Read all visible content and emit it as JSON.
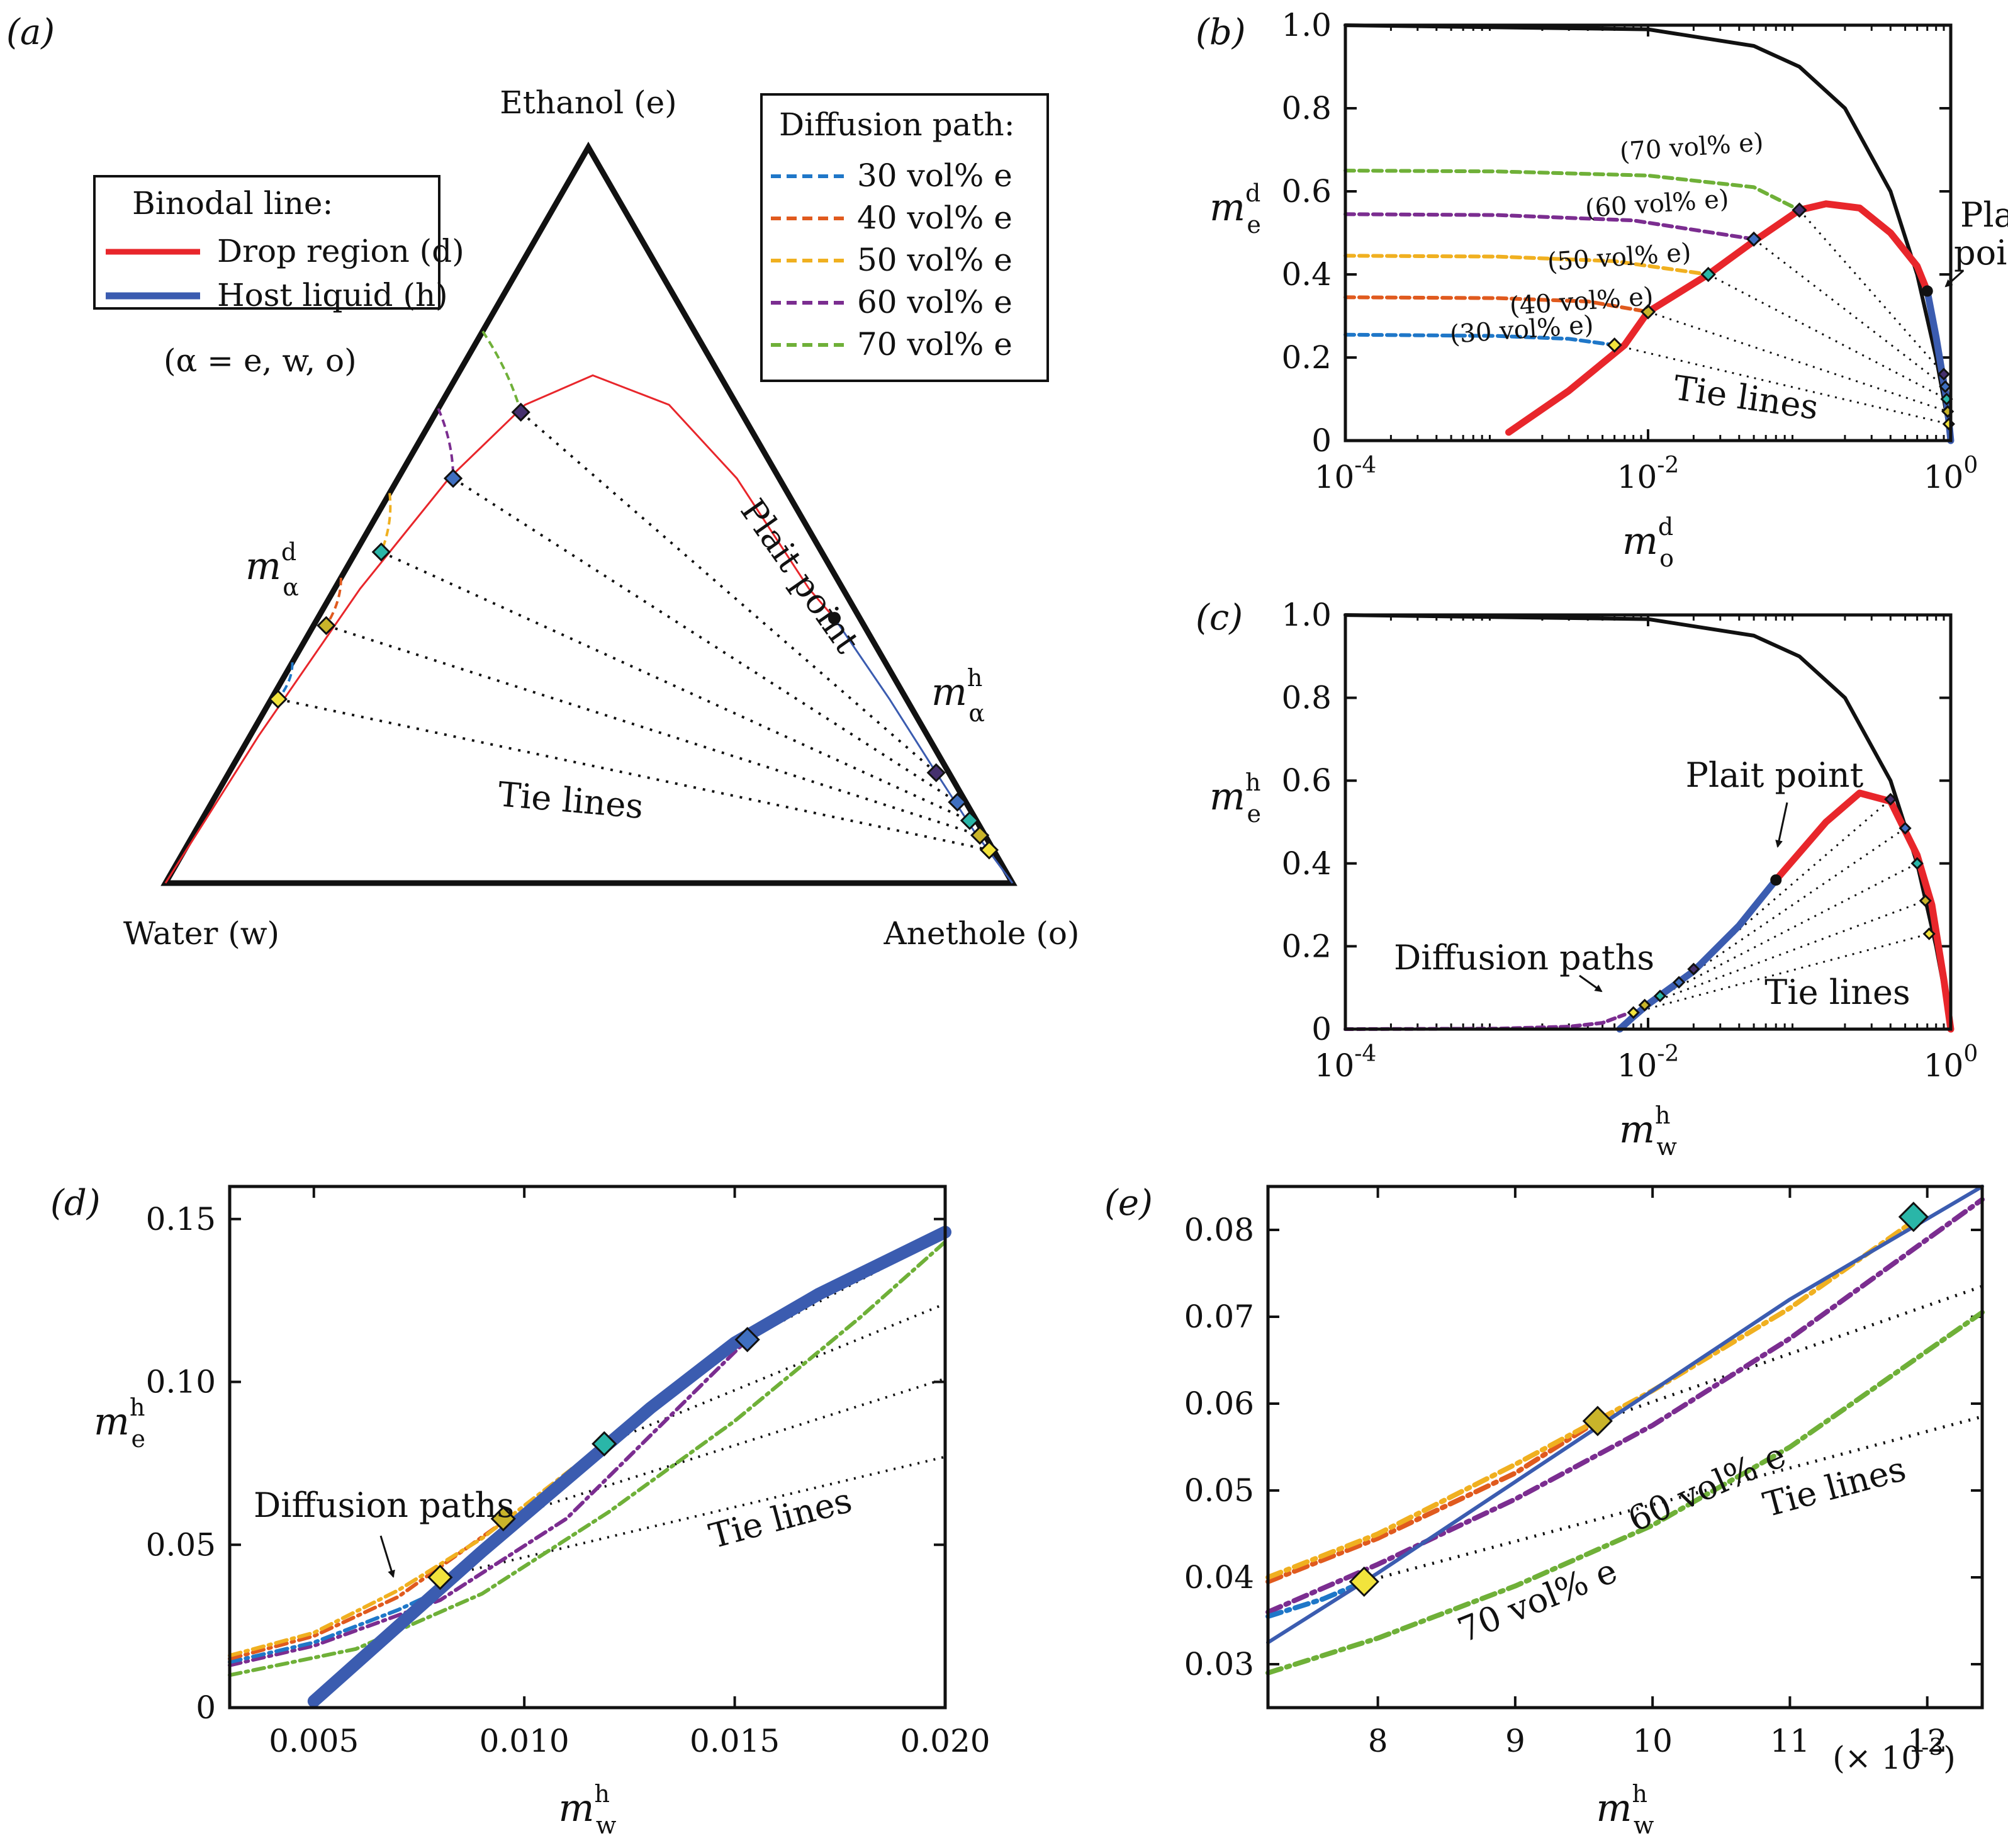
{
  "colors": {
    "drop": "#e8262b",
    "host": "#3b5cb0",
    "p30": "#1f77c8",
    "p40": "#e05a1e",
    "p50": "#f0b020",
    "p60": "#7b2d90",
    "p70": "#6fb038",
    "black": "#111111",
    "diamond_colors": [
      "#f2e33c",
      "#c9b42a",
      "#2ab6a8",
      "#3f6fc0",
      "#45306e"
    ]
  },
  "panel_a": {
    "label": "(a)",
    "vertex_top": "Ethanol (e)",
    "vertex_left": "Water (w)",
    "vertex_right": "Anethole (o)",
    "legend_binodal": {
      "title": "Binodal line:",
      "items": [
        {
          "key": "drop",
          "label": "Drop region (d)"
        },
        {
          "key": "host",
          "label": "Host liquid (h)"
        }
      ]
    },
    "alpha_note": "(α = e, w, o)",
    "legend_paths": {
      "title": "Diffusion path:",
      "items": [
        {
          "key": "p30",
          "label": "30 vol% e"
        },
        {
          "key": "p40",
          "label": "40 vol% e"
        },
        {
          "key": "p50",
          "label": "50 vol% e"
        },
        {
          "key": "p60",
          "label": "60 vol% e"
        },
        {
          "key": "p70",
          "label": "70 vol% e"
        }
      ]
    },
    "ann_md": "m",
    "ann_md_sup": "d",
    "ann_md_sub": "α",
    "ann_mh": "m",
    "ann_mh_sup": "h",
    "ann_mh_sub": "α",
    "plait_point": "Plait point",
    "tie_lines": "Tie lines"
  },
  "chart_data": [
    {
      "panel": "b",
      "label": "(b)",
      "type": "line",
      "xscale": "log",
      "xlim": [
        0.0001,
        1
      ],
      "ylim": [
        0,
        1
      ],
      "xticks": [
        "10^-4",
        "10^-2",
        "10^0"
      ],
      "yticks": [
        "0",
        "0.2",
        "0.4",
        "0.6",
        "0.8",
        "1.0"
      ],
      "ylabel": "m_e^d",
      "xlabel": "m_o^d",
      "series": [
        {
          "name": "Drop region (d)",
          "x": [
            0.0012,
            0.003,
            0.007,
            0.01,
            0.025,
            0.05,
            0.1,
            0.15,
            0.25,
            0.4,
            0.6,
            0.7
          ],
          "y": [
            0.02,
            0.12,
            0.23,
            0.31,
            0.4,
            0.48,
            0.555,
            0.57,
            0.56,
            0.5,
            0.42,
            0.36
          ]
        },
        {
          "name": "Host liquid (h)",
          "x": [
            0.7,
            0.8,
            0.88,
            0.93,
            0.97,
            1.0
          ],
          "y": [
            0.36,
            0.25,
            0.16,
            0.11,
            0.05,
            0.0
          ]
        },
        {
          "name": "Boundary (m_e = 1 - m_o)",
          "x": [
            0.0001,
            0.01,
            0.05,
            0.1,
            0.2,
            0.4,
            0.6,
            0.8,
            0.9,
            1.0
          ],
          "y": [
            0.9999,
            0.99,
            0.95,
            0.9,
            0.8,
            0.6,
            0.4,
            0.2,
            0.1,
            0.0
          ]
        },
        {
          "name": "30 vol% e",
          "x": [
            0.0001,
            0.001,
            0.003,
            0.006
          ],
          "y": [
            0.255,
            0.252,
            0.245,
            0.23
          ]
        },
        {
          "name": "40 vol% e",
          "x": [
            0.0001,
            0.001,
            0.004,
            0.01
          ],
          "y": [
            0.345,
            0.343,
            0.335,
            0.31
          ]
        },
        {
          "name": "50 vol% e",
          "x": [
            0.0001,
            0.001,
            0.006,
            0.025
          ],
          "y": [
            0.445,
            0.443,
            0.432,
            0.4
          ]
        },
        {
          "name": "60 vol% e",
          "x": [
            0.0001,
            0.001,
            0.008,
            0.05
          ],
          "y": [
            0.545,
            0.543,
            0.53,
            0.485
          ]
        },
        {
          "name": "70 vol% e",
          "x": [
            0.0001,
            0.001,
            0.01,
            0.05,
            0.1
          ],
          "y": [
            0.65,
            0.648,
            0.638,
            0.61,
            0.555
          ]
        }
      ],
      "tie_points": {
        "drop_x": [
          0.006,
          0.01,
          0.025,
          0.05,
          0.1
        ],
        "drop_y": [
          0.23,
          0.31,
          0.4,
          0.485,
          0.555
        ],
        "host_x": [
          0.97,
          0.955,
          0.94,
          0.92,
          0.9
        ],
        "host_y": [
          0.04,
          0.07,
          0.1,
          0.13,
          0.16
        ]
      },
      "plait": {
        "x": 0.7,
        "y": 0.36
      },
      "annotations": [
        "(30 vol% e)",
        "(40 vol% e)",
        "(50 vol% e)",
        "(60 vol% e)",
        "(70 vol% e)",
        "Plait",
        "point",
        "Tie lines"
      ]
    },
    {
      "panel": "c",
      "label": "(c)",
      "type": "line",
      "xscale": "log",
      "xlim": [
        0.0001,
        1
      ],
      "ylim": [
        0,
        1
      ],
      "xticks": [
        "10^-4",
        "10^-2",
        "10^0"
      ],
      "yticks": [
        "0",
        "0.2",
        "0.4",
        "0.6",
        "0.8",
        "1.0"
      ],
      "ylabel": "m_e^h",
      "xlabel": "m_w^h",
      "series": [
        {
          "name": "Host liquid (h)",
          "x": [
            0.0065,
            0.008,
            0.01,
            0.02,
            0.04,
            0.07
          ],
          "y": [
            0.0,
            0.03,
            0.06,
            0.14,
            0.25,
            0.36
          ]
        },
        {
          "name": "Drop region (d)",
          "x": [
            0.07,
            0.15,
            0.25,
            0.4,
            0.6,
            0.75,
            0.9,
            1.0
          ],
          "y": [
            0.36,
            0.5,
            0.57,
            0.55,
            0.42,
            0.3,
            0.12,
            0.0
          ]
        },
        {
          "name": "Boundary (m_e = 1 - m_w)",
          "x": [
            0.0001,
            0.01,
            0.05,
            0.1,
            0.2,
            0.4,
            0.6,
            0.8,
            0.9,
            1.0
          ],
          "y": [
            0.9999,
            0.99,
            0.95,
            0.9,
            0.8,
            0.6,
            0.4,
            0.2,
            0.1,
            0.0
          ]
        },
        {
          "name": "Diffusion paths",
          "x": [
            0.0001,
            0.001,
            0.003,
            0.005,
            0.007
          ],
          "y": [
            0.0,
            0.001,
            0.006,
            0.015,
            0.035
          ]
        }
      ],
      "tie_points": {
        "host_x": [
          0.008,
          0.0095,
          0.012,
          0.016,
          0.02
        ],
        "host_y": [
          0.04,
          0.058,
          0.08,
          0.113,
          0.145
        ],
        "drop_x": [
          0.72,
          0.68,
          0.6,
          0.5,
          0.4
        ],
        "drop_y": [
          0.23,
          0.31,
          0.4,
          0.485,
          0.555
        ]
      },
      "plait": {
        "x": 0.07,
        "y": 0.36
      },
      "annotations": [
        "Plait point",
        "Diffusion paths",
        "Tie lines"
      ]
    },
    {
      "panel": "d",
      "label": "(d)",
      "type": "line",
      "xlim": [
        0.003,
        0.02
      ],
      "ylim": [
        0,
        0.16
      ],
      "xticks": [
        "0.005",
        "0.010",
        "0.015",
        "0.020"
      ],
      "yticks": [
        "0",
        "0.05",
        "0.10",
        "0.15"
      ],
      "ylabel": "m_e^h",
      "xlabel": "m_w^h",
      "series": [
        {
          "name": "Host liquid (h)",
          "x": [
            0.005,
            0.007,
            0.009,
            0.011,
            0.013,
            0.015,
            0.017,
            0.02
          ],
          "y": [
            0.002,
            0.025,
            0.048,
            0.07,
            0.092,
            0.112,
            0.127,
            0.146
          ]
        },
        {
          "name": "30 vol% e",
          "x": [
            0.003,
            0.005,
            0.007,
            0.008
          ],
          "y": [
            0.014,
            0.02,
            0.03,
            0.036
          ]
        },
        {
          "name": "40 vol% e",
          "x": [
            0.003,
            0.005,
            0.007,
            0.0095
          ],
          "y": [
            0.015,
            0.022,
            0.034,
            0.057
          ]
        },
        {
          "name": "50 vol% e",
          "x": [
            0.003,
            0.005,
            0.007,
            0.009,
            0.0119
          ],
          "y": [
            0.016,
            0.023,
            0.036,
            0.052,
            0.081
          ]
        },
        {
          "name": "60 vol% e",
          "x": [
            0.003,
            0.005,
            0.008,
            0.011,
            0.0153
          ],
          "y": [
            0.013,
            0.019,
            0.033,
            0.058,
            0.113
          ]
        },
        {
          "name": "70 vol% e",
          "x": [
            0.003,
            0.006,
            0.009,
            0.012,
            0.015,
            0.018,
            0.02
          ],
          "y": [
            0.01,
            0.018,
            0.035,
            0.06,
            0.088,
            0.12,
            0.143
          ]
        }
      ],
      "tie_points": {
        "x": [
          0.008,
          0.0095,
          0.0119,
          0.0153
        ],
        "y": [
          0.04,
          0.058,
          0.081,
          0.113
        ]
      },
      "annotations": [
        "Diffusion paths",
        "Tie lines"
      ]
    },
    {
      "panel": "e",
      "label": "(e)",
      "type": "line",
      "xlim": [
        7.2,
        12.4
      ],
      "x_multiplier": "(× 10^-3)",
      "ylim": [
        0.025,
        0.085
      ],
      "xticks": [
        "8",
        "9",
        "10",
        "11",
        "12"
      ],
      "yticks": [
        "0.03",
        "0.04",
        "0.05",
        "0.06",
        "0.07",
        "0.08"
      ],
      "xlabel": "m_w^h",
      "series": [
        {
          "name": "Host liquid (h)",
          "x": [
            7.2,
            8.0,
            9.0,
            10.0,
            11.0,
            12.4
          ],
          "y": [
            0.0325,
            0.0405,
            0.051,
            0.0615,
            0.072,
            0.085
          ]
        },
        {
          "name": "30 vol% e",
          "x": [
            7.2,
            7.6,
            7.9
          ],
          "y": [
            0.0355,
            0.0375,
            0.0395
          ]
        },
        {
          "name": "40 vol% e",
          "x": [
            7.2,
            8.0,
            9.0,
            9.6
          ],
          "y": [
            0.0395,
            0.0445,
            0.052,
            0.058
          ]
        },
        {
          "name": "50 vol% e",
          "x": [
            7.2,
            8.0,
            9.0,
            10.0,
            11.0,
            11.9
          ],
          "y": [
            0.04,
            0.045,
            0.053,
            0.0615,
            0.071,
            0.081
          ]
        },
        {
          "name": "60 vol% e",
          "x": [
            7.2,
            8.0,
            9.0,
            10.0,
            11.0,
            12.4
          ],
          "y": [
            0.036,
            0.0415,
            0.049,
            0.0575,
            0.0675,
            0.0835
          ]
        },
        {
          "name": "70 vol% e",
          "x": [
            7.2,
            8.0,
            9.0,
            10.0,
            11.0,
            12.4
          ],
          "y": [
            0.029,
            0.033,
            0.039,
            0.046,
            0.055,
            0.0705
          ]
        }
      ],
      "tie_lines": [
        {
          "x": [
            7.9,
            12.4
          ],
          "y": [
            0.0395,
            0.0585
          ]
        },
        {
          "x": [
            9.6,
            12.4
          ],
          "y": [
            0.058,
            0.0735
          ]
        }
      ],
      "tie_points": {
        "x": [
          7.9,
          9.6,
          11.9
        ],
        "y": [
          0.0395,
          0.058,
          0.0815
        ]
      },
      "annotations": [
        "60 vol% e",
        "70 vol% e",
        "Tie lines"
      ]
    }
  ]
}
